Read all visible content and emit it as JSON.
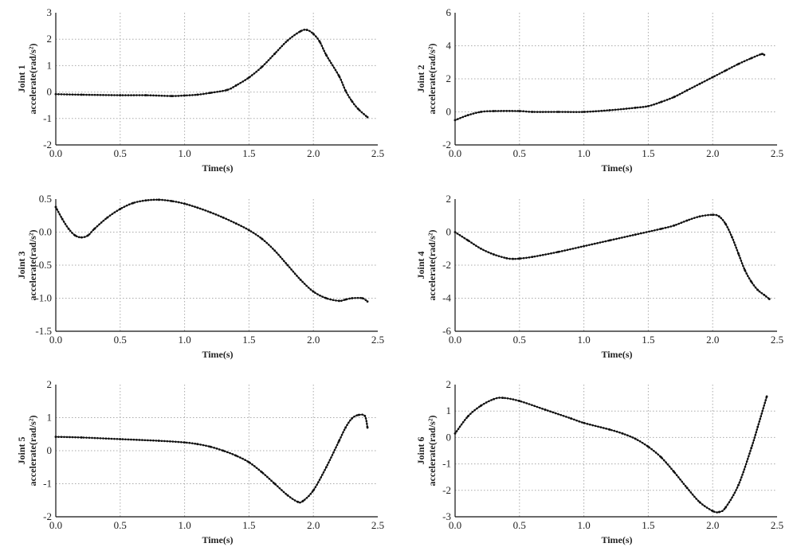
{
  "chart_data": [
    {
      "type": "line",
      "ylabel_top": "Joint 1",
      "ylabel": "accelerate(rad/s²)",
      "xlabel": "Time(s)",
      "xlim": [
        0,
        2.5
      ],
      "ylim": [
        -2,
        3
      ],
      "xticks": [
        "0.0",
        "0.5",
        "1.0",
        "1.5",
        "2.0",
        "2.5"
      ],
      "yticks": [
        "-2",
        "-1",
        "0",
        "1",
        "2",
        "3"
      ],
      "grid": true,
      "x": [
        0,
        0.2,
        0.5,
        0.7,
        0.9,
        1.0,
        1.1,
        1.2,
        1.33,
        1.4,
        1.5,
        1.6,
        1.7,
        1.8,
        1.9,
        1.95,
        2.0,
        2.05,
        2.1,
        2.2,
        2.25,
        2.3,
        2.35,
        2.42
      ],
      "y": [
        -0.08,
        -0.1,
        -0.12,
        -0.12,
        -0.15,
        -0.13,
        -0.1,
        -0.03,
        0.08,
        0.25,
        0.55,
        0.95,
        1.45,
        1.95,
        2.3,
        2.35,
        2.2,
        1.9,
        1.4,
        0.6,
        0.05,
        -0.35,
        -0.65,
        -0.95
      ]
    },
    {
      "type": "line",
      "ylabel_top": "Joint 2",
      "ylabel": "accelerate(rad/s²)",
      "xlabel": "Time(s)",
      "xlim": [
        0,
        2.5
      ],
      "ylim": [
        -2,
        6
      ],
      "xticks": [
        "0.0",
        "0.5",
        "1.0",
        "1.5",
        "2.0",
        "2.5"
      ],
      "yticks": [
        "-2",
        "0",
        "2",
        "4",
        "6"
      ],
      "grid": true,
      "x": [
        0,
        0.1,
        0.2,
        0.3,
        0.5,
        0.6,
        0.8,
        1.0,
        1.2,
        1.4,
        1.5,
        1.6,
        1.7,
        1.8,
        1.9,
        2.0,
        2.1,
        2.2,
        2.3,
        2.38,
        2.4
      ],
      "y": [
        -0.5,
        -0.2,
        0,
        0.05,
        0.05,
        0,
        0,
        0,
        0.1,
        0.25,
        0.35,
        0.6,
        0.9,
        1.3,
        1.7,
        2.1,
        2.5,
        2.9,
        3.25,
        3.5,
        3.45
      ]
    },
    {
      "type": "line",
      "ylabel_top": "Joint 3",
      "ylabel": "accelerate(rad/s²)",
      "xlabel": "Time(s)",
      "xlim": [
        0,
        2.5
      ],
      "ylim": [
        -1.5,
        0.5
      ],
      "xticks": [
        "0.0",
        "0.5",
        "1.0",
        "1.5",
        "2.0",
        "2.5"
      ],
      "yticks": [
        "-1.5",
        "-1.0",
        "-0.5",
        "0.0",
        "0.5"
      ],
      "grid": true,
      "x": [
        0,
        0.05,
        0.1,
        0.15,
        0.2,
        0.25,
        0.3,
        0.4,
        0.5,
        0.6,
        0.7,
        0.8,
        0.9,
        1.0,
        1.1,
        1.2,
        1.3,
        1.4,
        1.5,
        1.6,
        1.7,
        1.8,
        1.9,
        2.0,
        2.1,
        2.2,
        2.25,
        2.3,
        2.38,
        2.42
      ],
      "y": [
        0.38,
        0.2,
        0.05,
        -0.05,
        -0.08,
        -0.05,
        0.05,
        0.22,
        0.35,
        0.44,
        0.48,
        0.49,
        0.47,
        0.43,
        0.37,
        0.3,
        0.22,
        0.13,
        0.03,
        -0.1,
        -0.28,
        -0.5,
        -0.72,
        -0.9,
        -1.0,
        -1.04,
        -1.02,
        -1.0,
        -1.0,
        -1.05
      ]
    },
    {
      "type": "line",
      "ylabel_top": "Joint 4",
      "ylabel": "accelerate(rad/s²)",
      "xlabel": "Time(s)",
      "xlim": [
        0,
        2.5
      ],
      "ylim": [
        -6,
        2
      ],
      "xticks": [
        "0.0",
        "0.5",
        "1.0",
        "1.5",
        "2.0",
        "2.5"
      ],
      "yticks": [
        "-6",
        "-4",
        "-2",
        "0",
        "2"
      ],
      "grid": true,
      "x": [
        0,
        0.1,
        0.2,
        0.3,
        0.4,
        0.45,
        0.5,
        0.6,
        0.8,
        1.0,
        1.2,
        1.4,
        1.6,
        1.7,
        1.8,
        1.9,
        2.0,
        2.05,
        2.1,
        2.15,
        2.2,
        2.25,
        2.3,
        2.35,
        2.4,
        2.44
      ],
      "y": [
        0,
        -0.5,
        -1.0,
        -1.35,
        -1.58,
        -1.62,
        -1.6,
        -1.5,
        -1.2,
        -0.85,
        -0.5,
        -0.15,
        0.2,
        0.4,
        0.7,
        0.95,
        1.05,
        0.95,
        0.5,
        -0.3,
        -1.3,
        -2.3,
        -3.0,
        -3.5,
        -3.8,
        -4.05
      ]
    },
    {
      "type": "line",
      "ylabel_top": "Joint 5",
      "ylabel": "accelerate(rad/s²)",
      "xlabel": "Time(s)",
      "xlim": [
        0,
        2.5
      ],
      "ylim": [
        -2,
        2
      ],
      "xticks": [
        "0.0",
        "0.5",
        "1.0",
        "1.5",
        "2.0",
        "2.5"
      ],
      "yticks": [
        "-2",
        "-1",
        "0",
        "1",
        "2"
      ],
      "grid": true,
      "x": [
        0,
        0.2,
        0.5,
        0.8,
        1.0,
        1.1,
        1.2,
        1.3,
        1.4,
        1.5,
        1.6,
        1.7,
        1.8,
        1.88,
        1.92,
        2.0,
        2.1,
        2.2,
        2.25,
        2.3,
        2.35,
        2.4,
        2.42
      ],
      "y": [
        0.42,
        0.4,
        0.35,
        0.3,
        0.25,
        0.2,
        0.12,
        0.0,
        -0.15,
        -0.35,
        -0.65,
        -1.0,
        -1.35,
        -1.55,
        -1.52,
        -1.2,
        -0.5,
        0.3,
        0.7,
        0.98,
        1.08,
        1.05,
        0.7
      ]
    },
    {
      "type": "line",
      "ylabel_top": "Joint 6",
      "ylabel": "accelerate(rad/s²)",
      "xlabel": "Time(s)",
      "xlim": [
        0,
        2.5
      ],
      "ylim": [
        -3,
        2
      ],
      "xticks": [
        "0.0",
        "0.5",
        "1.0",
        "1.5",
        "2.0",
        "2.5"
      ],
      "yticks": [
        "-3",
        "-2",
        "-1",
        "0",
        "1",
        "2"
      ],
      "grid": true,
      "x": [
        0,
        0.1,
        0.2,
        0.3,
        0.37,
        0.5,
        0.7,
        0.9,
        1.0,
        1.2,
        1.3,
        1.4,
        1.5,
        1.6,
        1.7,
        1.8,
        1.9,
        2.0,
        2.05,
        2.1,
        2.2,
        2.3,
        2.35,
        2.42
      ],
      "y": [
        0.15,
        0.8,
        1.2,
        1.45,
        1.5,
        1.38,
        1.05,
        0.72,
        0.55,
        0.3,
        0.15,
        -0.05,
        -0.35,
        -0.75,
        -1.3,
        -1.9,
        -2.45,
        -2.78,
        -2.82,
        -2.65,
        -1.8,
        -0.4,
        0.4,
        1.55
      ]
    }
  ]
}
